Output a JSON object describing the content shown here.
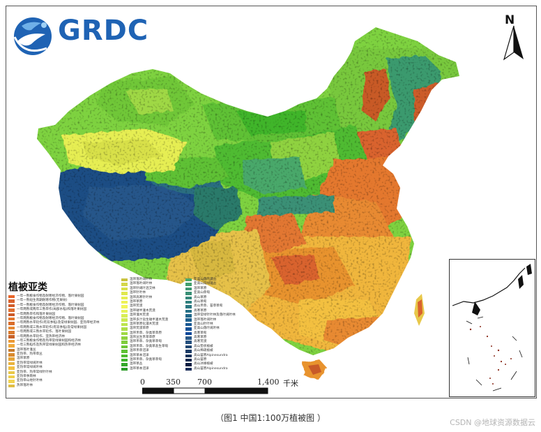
{
  "logo": {
    "text": "GRDC"
  },
  "north_arrow": {
    "label": "N"
  },
  "legend": {
    "title": "植被亚类",
    "col1": [
      {
        "label": "一年一熟粮食作物及耐寒经济作物、落叶果树园",
        "color": "#e8652a"
      },
      {
        "label": "一年一熟短生育期耐寒作物(无果树)",
        "color": "#d9632e"
      },
      {
        "label": "一年一熟粮食作物及耐寒经济作物、落叶果树园",
        "color": "#d15d2b"
      },
      {
        "label": "一年两熟或两年三熟旱作(局部水稻)和落叶果树园",
        "color": "#e07030"
      },
      {
        "label": "一年两熟旱作和落叶果树园",
        "color": "#cc5a28"
      },
      {
        "label": "一年两熟粮食作物及耐寒经济作物、落叶果树园",
        "color": "#e4782f"
      },
      {
        "label": "一年两熟水旱轮作(有双季稻)及常绿果树园、亚热带经济林",
        "color": "#d96e2c"
      },
      {
        "label": "一年两熟或三熟水旱轮作(有双季稻)及常绿果树园",
        "color": "#e88a33"
      },
      {
        "label": "一年两熟或三熟水旱轮作、落叶果树园",
        "color": "#da7b2e"
      },
      {
        "label": "一年两熟水旱轮作、亚热带经济林",
        "color": "#c96228"
      },
      {
        "label": "一年三熟粮食作物及热带常绿果树园和经济林",
        "color": "#ec9a36"
      },
      {
        "label": "一年三熟稻作及热带常绿果树园和热带经济林",
        "color": "#f0a93a"
      },
      {
        "label": "温带落叶灌丛",
        "color": "#c77a2a"
      },
      {
        "label": "亚热带、热带草丛",
        "color": "#d98a2e"
      },
      {
        "label": "温带草原",
        "color": "#e6a53a"
      },
      {
        "label": "亚热带常绿阔叶林",
        "color": "#e9b43e"
      },
      {
        "label": "亚热带常绿阔叶林",
        "color": "#f3c041"
      },
      {
        "label": "亚热带、热带常绿针叶林",
        "color": "#e8c84a"
      },
      {
        "label": "亚热带季雨林",
        "color": "#f0cf4c"
      },
      {
        "label": "亚热带山地针叶林",
        "color": "#f2d452"
      },
      {
        "label": "热带落叶林",
        "color": "#e0bd44"
      }
    ],
    "col2": [
      {
        "label": "温带落叶阔叶林",
        "color": "#c9c23e"
      },
      {
        "label": "温带落叶阔叶林",
        "color": "#d4d64a"
      },
      {
        "label": "温带针阔叶混交林",
        "color": "#d8e04a"
      },
      {
        "label": "温带针叶林",
        "color": "#e0e84f"
      },
      {
        "label": "温带高寒针叶林",
        "color": "#e6ee52"
      },
      {
        "label": "温带草原",
        "color": "#eef257"
      },
      {
        "label": "温带荒漠",
        "color": "#f2f55c"
      },
      {
        "label": "温带矮半灌木荒漠",
        "color": "#e7f25a"
      },
      {
        "label": "温带灌木荒漠",
        "color": "#d8ee55"
      },
      {
        "label": "温带多汁盐生矮半灌木荒漠",
        "color": "#cdea51"
      },
      {
        "label": "温带草原化灌木荒漠",
        "color": "#bde44d"
      },
      {
        "label": "温带荒漠草原",
        "color": "#aede49"
      },
      {
        "label": "温带禾草、杂类草草原",
        "color": "#9fd844"
      },
      {
        "label": "温带丛生禾草草原",
        "color": "#8fd240"
      },
      {
        "label": "温带禾草、杂类草草甸",
        "color": "#7fcd3c"
      },
      {
        "label": "温带禾草、杂类草盐生草甸",
        "color": "#6fc738"
      },
      {
        "label": "温带禾草沼泽",
        "color": "#5fc134"
      },
      {
        "label": "温带草本沼泽",
        "color": "#4fbb30"
      },
      {
        "label": "温带禾草、杂类草草甸",
        "color": "#3fb52c"
      },
      {
        "label": "温带草丛",
        "color": "#35a82a"
      },
      {
        "label": "温带草本沼泽",
        "color": "#2b9c28"
      }
    ],
    "col3": [
      {
        "label": "亚高山落叶灌丛",
        "color": "#4aa86a"
      },
      {
        "label": "亚高山常绿灌丛",
        "color": "#44a06e"
      },
      {
        "label": "温带草原",
        "color": "#3f9872"
      },
      {
        "label": "亚高山草甸",
        "color": "#3a9076"
      },
      {
        "label": "高山草原",
        "color": "#35887a"
      },
      {
        "label": "高山草甸",
        "color": "#30807e"
      },
      {
        "label": "高山禾草、苔草草甸",
        "color": "#2b7882"
      },
      {
        "label": "高寒草原",
        "color": "#267086"
      },
      {
        "label": "温带常绿针叶林及落叶阔叶林",
        "color": "#21688a"
      },
      {
        "label": "温带落叶阔叶林",
        "color": "#1c608e"
      },
      {
        "label": "亚高山针叶林",
        "color": "#175892"
      },
      {
        "label": "亚高山落叶阔叶林",
        "color": "#125096"
      },
      {
        "label": "高寒草甸",
        "color": "#0d489a"
      },
      {
        "label": "高寒草原",
        "color": "#2a5a8a"
      },
      {
        "label": "高寒荒漠",
        "color": "#25507e"
      },
      {
        "label": "高山垫状植被",
        "color": "#204672"
      },
      {
        "label": "高山稀疏植被",
        "color": "#1b3c66"
      },
      {
        "label": "高山苔原Alpinesundra",
        "color": "#16325a"
      },
      {
        "label": "高山苔原",
        "color": "#11284e"
      },
      {
        "label": "高山冰缘植被",
        "color": "#0c1e42"
      },
      {
        "label": "高山苔原Alpinesundra",
        "color": "#1a2e5a"
      }
    ]
  },
  "scale_bar": {
    "ticks": [
      "0",
      "350",
      "700",
      "1,400"
    ],
    "unit": "千米"
  },
  "caption": "（图1 中国1:100万植被图 ）",
  "watermark": "CSDN @地球资源数据云"
}
